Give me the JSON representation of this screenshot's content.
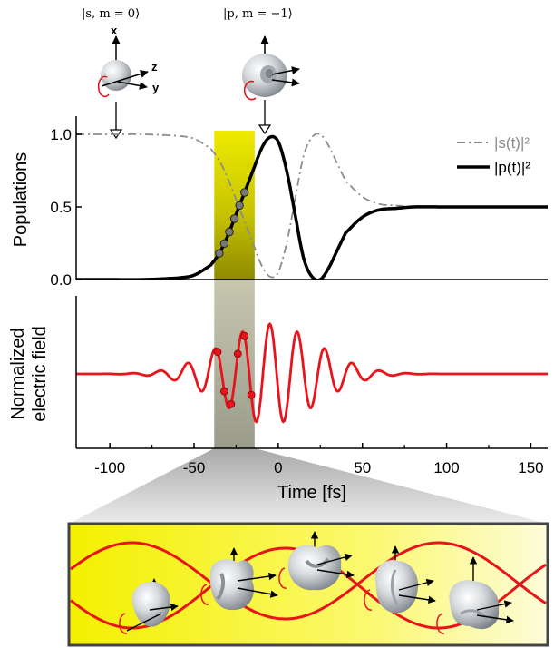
{
  "kets": {
    "s_state": "|s, m = 0⟩",
    "p_state": "|p, m = −1⟩"
  },
  "axis_letters": {
    "x": "x",
    "y": "y",
    "z": "z"
  },
  "colors": {
    "s_line": "#8c8c8c",
    "p_line": "#000000",
    "field": "#e8141c",
    "highlight": "#f0ec00",
    "orbital": "#c8ccd0"
  },
  "chart_data": [
    {
      "type": "line",
      "ylabel": "Populations",
      "xlim": [
        -120,
        160
      ],
      "ylim": [
        0,
        1.05
      ],
      "yticks": [
        "0.0",
        "0.5",
        "1.0"
      ],
      "legend": [
        {
          "name": "|s(t)|²",
          "style": "dash-dot gray"
        },
        {
          "name": "|p(t)|²",
          "style": "solid black"
        }
      ],
      "legend_position": "top-right",
      "series": [
        {
          "name": "|s(t)|²",
          "x": [
            -120,
            -100,
            -80,
            -60,
            -50,
            -40,
            -35,
            -30,
            -25,
            -20,
            -15,
            -10,
            -5,
            0,
            5,
            10,
            15,
            20,
            25,
            30,
            35,
            40,
            50,
            60,
            70,
            80,
            100,
            120,
            160
          ],
          "y": [
            1.0,
            1.0,
            1.0,
            0.99,
            0.97,
            0.9,
            0.82,
            0.7,
            0.55,
            0.4,
            0.25,
            0.1,
            0.02,
            0.05,
            0.25,
            0.55,
            0.85,
            0.98,
            1.0,
            0.92,
            0.8,
            0.68,
            0.57,
            0.52,
            0.51,
            0.5,
            0.5,
            0.5,
            0.5
          ]
        },
        {
          "name": "|p(t)|²",
          "x": [
            -120,
            -100,
            -80,
            -60,
            -50,
            -40,
            -35,
            -30,
            -25,
            -20,
            -15,
            -10,
            -5,
            0,
            5,
            10,
            15,
            20,
            25,
            30,
            35,
            40,
            50,
            60,
            70,
            80,
            100,
            120,
            160
          ],
          "y": [
            0.0,
            0.0,
            0.0,
            0.01,
            0.03,
            0.1,
            0.18,
            0.3,
            0.45,
            0.6,
            0.75,
            0.9,
            0.98,
            0.95,
            0.75,
            0.45,
            0.15,
            0.02,
            0.0,
            0.08,
            0.2,
            0.32,
            0.43,
            0.48,
            0.49,
            0.5,
            0.5,
            0.5,
            0.5
          ]
        }
      ],
      "markers": {
        "series": "|p(t)|²",
        "x": [
          -35,
          -32,
          -29,
          -26,
          -23,
          -20
        ]
      },
      "highlight_x_range": [
        -38,
        -14
      ]
    },
    {
      "type": "line",
      "ylabel": "Normalized electric field",
      "xlabel": "Time [fs]",
      "xlim": [
        -120,
        160
      ],
      "xticks": [
        "-100",
        "-50",
        "0",
        "50",
        "100",
        "150"
      ],
      "xtick_values": [
        -100,
        -50,
        0,
        50,
        100,
        150
      ],
      "series": [
        {
          "name": "",
          "function": "exp(-(t+5)^2/(2*28^2)) * cos(2*pi*(t+5)/16.3)",
          "t_range": [
            -120,
            160
          ]
        }
      ],
      "markers": {
        "x": [
          -36,
          -32,
          -28,
          -24,
          -20,
          -16
        ]
      },
      "highlight_x_range": [
        -38,
        -14
      ]
    }
  ]
}
